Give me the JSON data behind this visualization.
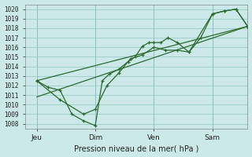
{
  "bg_color": "#cce8e8",
  "grid_color": "#99cccc",
  "line_color": "#2d6a2d",
  "ylim": [
    1007.5,
    1020.5
  ],
  "xlim": [
    0,
    9.5
  ],
  "xtick_labels": [
    "Jeu",
    "Dim",
    "Ven",
    "Sam"
  ],
  "xtick_positions": [
    0.5,
    3.0,
    5.5,
    8.0
  ],
  "ytick_start": 1008,
  "ytick_end": 1020,
  "xlabel": "Pression niveau de la mer( hPa )",
  "vline_positions": [
    0.5,
    3.0,
    5.5,
    8.0
  ],
  "line1_x": [
    0.5,
    1.0,
    1.5,
    2.0,
    2.5,
    3.0,
    3.3,
    3.6,
    4.0,
    4.4,
    4.7,
    5.0,
    5.3,
    5.5,
    5.8,
    6.1,
    6.5,
    7.0,
    7.5,
    8.0,
    8.5,
    9.0,
    9.5
  ],
  "line1_y": [
    1012.5,
    1011.8,
    1011.5,
    1009.0,
    1008.3,
    1007.8,
    1012.5,
    1013.2,
    1013.7,
    1014.5,
    1015.0,
    1016.1,
    1016.5,
    1016.5,
    1016.5,
    1017.0,
    1016.5,
    1015.5,
    1017.0,
    1019.5,
    1019.8,
    1020.0,
    1018.2
  ],
  "line2_x": [
    0.5,
    1.5,
    2.5,
    3.0,
    3.5,
    4.0,
    4.5,
    5.0,
    5.5,
    6.0,
    6.5,
    7.0,
    8.0,
    8.5,
    9.0,
    9.5
  ],
  "line2_y": [
    1012.5,
    1010.5,
    1009.0,
    1009.5,
    1012.0,
    1013.3,
    1014.8,
    1015.2,
    1016.0,
    1015.7,
    1015.7,
    1015.5,
    1019.5,
    1019.8,
    1020.0,
    1018.2
  ],
  "line3_x": [
    0.5,
    9.5
  ],
  "line3_y": [
    1012.5,
    1018.2
  ],
  "line4_x": [
    0.5,
    9.5
  ],
  "line4_y": [
    1010.8,
    1018.2
  ]
}
